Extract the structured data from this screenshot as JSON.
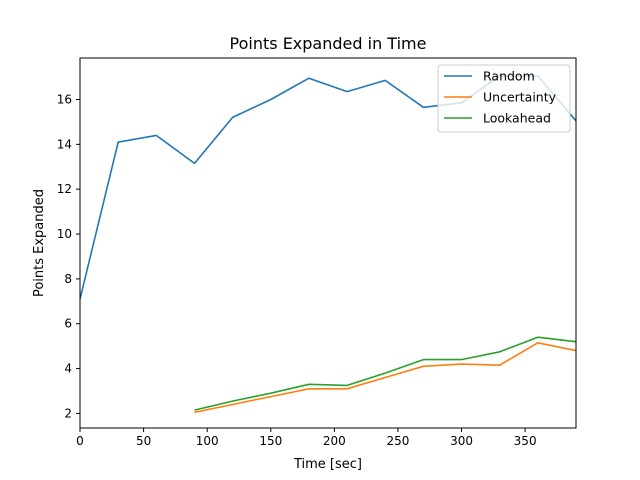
{
  "chart_data": {
    "type": "line",
    "title": "Points Expanded in Time",
    "xlabel": "Time [sec]",
    "ylabel": "Points Expanded",
    "xlim": [
      0,
      390
    ],
    "ylim": [
      1.35,
      17.85
    ],
    "xticks": [
      0,
      50,
      100,
      150,
      200,
      250,
      300,
      350
    ],
    "yticks": [
      2,
      4,
      6,
      8,
      10,
      12,
      14,
      16
    ],
    "grid": false,
    "legend_position": "top-right",
    "series": [
      {
        "name": "Random",
        "color": "#1f77b4",
        "x": [
          0,
          30,
          60,
          90,
          120,
          150,
          180,
          210,
          240,
          270,
          300,
          330,
          360,
          390
        ],
        "y": [
          7.1,
          14.1,
          14.4,
          13.15,
          15.2,
          16.0,
          16.95,
          16.35,
          16.85,
          15.65,
          15.85,
          17.05,
          17.05,
          15.05
        ]
      },
      {
        "name": "Uncertainty",
        "color": "#ff7f0e",
        "x": [
          90,
          120,
          150,
          180,
          210,
          240,
          270,
          300,
          330,
          360,
          390
        ],
        "y": [
          2.05,
          2.4,
          2.75,
          3.1,
          3.1,
          3.6,
          4.1,
          4.2,
          4.15,
          5.15,
          4.8
        ]
      },
      {
        "name": "Lookahead",
        "color": "#2ca02c",
        "x": [
          90,
          120,
          150,
          180,
          210,
          240,
          270,
          300,
          330,
          360,
          390
        ],
        "y": [
          2.15,
          2.55,
          2.9,
          3.3,
          3.25,
          3.8,
          4.4,
          4.4,
          4.75,
          5.4,
          5.2
        ]
      }
    ]
  }
}
